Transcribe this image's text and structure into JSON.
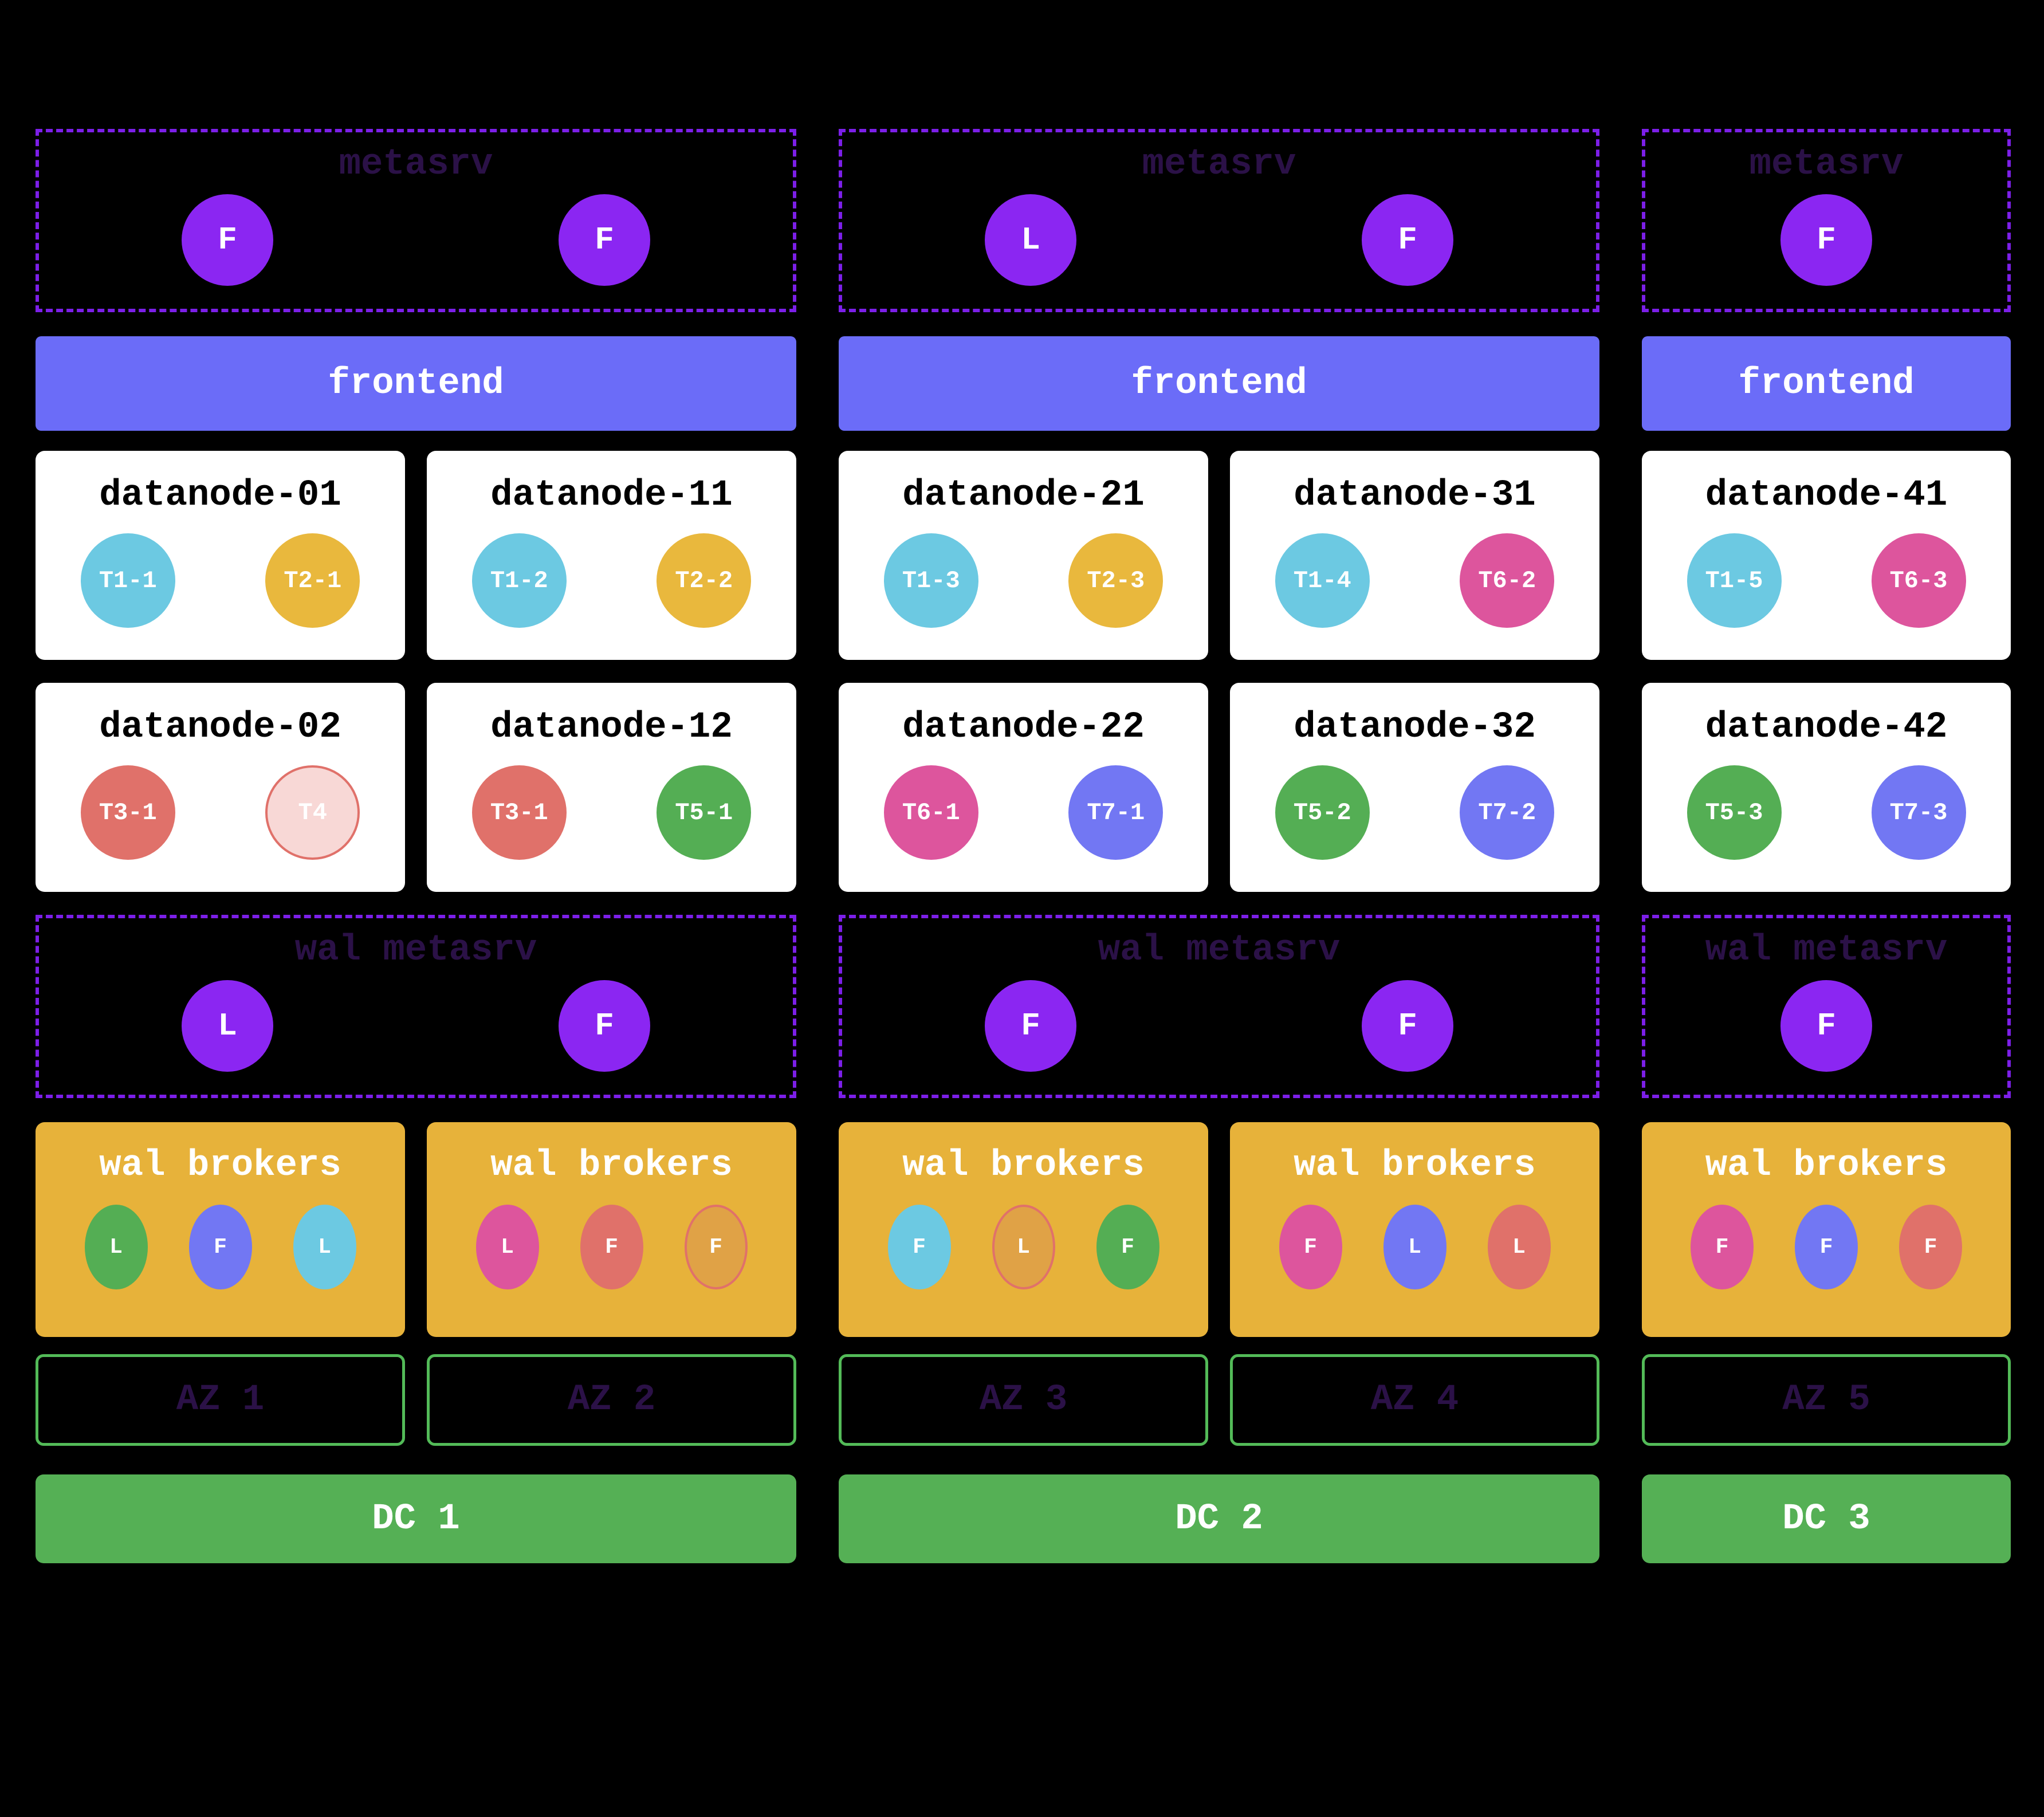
{
  "palette": {
    "background": "#000000",
    "metasrv_node_purple": "#8b26f2",
    "dashed_border_purple": "#7c1fe8",
    "dark_purple_label": "#2b1147",
    "frontend_bar": "#6b6cf8",
    "datanode_box": "#ffffff",
    "broker_box_yellow": "#e7b23a",
    "az_border_green": "#53bb58",
    "dc_fill_green": "#55b055",
    "region_cyan": "#6cc9e2",
    "region_yellow": "#e9b83d",
    "region_salmon": "#e0716a",
    "region_salmon_muted_fill": "#f8d8d6",
    "region_green": "#54ae54",
    "region_pink": "#dd559d",
    "region_blue": "#7277f3",
    "broker_orange": "#e0a246",
    "outline_salmon": "#e0716a"
  },
  "datacenters": [
    {
      "dc": {
        "label": "DC 1"
      },
      "metasrv": {
        "title": "metasrv",
        "nodes": [
          {
            "role": "F"
          },
          {
            "role": "F"
          }
        ]
      },
      "frontend": {
        "label": "frontend"
      },
      "datanode_rows": [
        [
          {
            "name": "datanode-01",
            "regions": [
              {
                "label": "T1-1",
                "color": "cyan"
              },
              {
                "label": "T2-1",
                "color": "yellow"
              }
            ]
          },
          {
            "name": "datanode-11",
            "regions": [
              {
                "label": "T1-2",
                "color": "cyan"
              },
              {
                "label": "T2-2",
                "color": "yellow"
              }
            ]
          }
        ],
        [
          {
            "name": "datanode-02",
            "regions": [
              {
                "label": "T3-1",
                "color": "salmon"
              },
              {
                "label": "T4",
                "color": "salmon-muted"
              }
            ]
          },
          {
            "name": "datanode-12",
            "regions": [
              {
                "label": "T3-1",
                "color": "salmon"
              },
              {
                "label": "T5-1",
                "color": "green"
              }
            ]
          }
        ]
      ],
      "wal_metasrv": {
        "title": "wal metasrv",
        "nodes": [
          {
            "role": "L"
          },
          {
            "role": "F"
          }
        ]
      },
      "wal_broker_groups": [
        {
          "title": "wal brokers",
          "brokers": [
            {
              "role": "L",
              "color": "green"
            },
            {
              "role": "F",
              "color": "blue"
            },
            {
              "role": "L",
              "color": "cyan"
            }
          ]
        },
        {
          "title": "wal brokers",
          "brokers": [
            {
              "role": "L",
              "color": "pink"
            },
            {
              "role": "F",
              "color": "salmon"
            },
            {
              "role": "F",
              "color": "orange-outline"
            }
          ]
        }
      ],
      "azs": [
        {
          "label": "AZ 1"
        },
        {
          "label": "AZ 2"
        }
      ]
    },
    {
      "dc": {
        "label": "DC 2"
      },
      "metasrv": {
        "title": "metasrv",
        "nodes": [
          {
            "role": "L"
          },
          {
            "role": "F"
          }
        ]
      },
      "frontend": {
        "label": "frontend"
      },
      "datanode_rows": [
        [
          {
            "name": "datanode-21",
            "regions": [
              {
                "label": "T1-3",
                "color": "cyan"
              },
              {
                "label": "T2-3",
                "color": "yellow"
              }
            ]
          },
          {
            "name": "datanode-31",
            "regions": [
              {
                "label": "T1-4",
                "color": "cyan"
              },
              {
                "label": "T6-2",
                "color": "pink"
              }
            ]
          }
        ],
        [
          {
            "name": "datanode-22",
            "regions": [
              {
                "label": "T6-1",
                "color": "pink"
              },
              {
                "label": "T7-1",
                "color": "blue"
              }
            ]
          },
          {
            "name": "datanode-32",
            "regions": [
              {
                "label": "T5-2",
                "color": "green"
              },
              {
                "label": "T7-2",
                "color": "blue"
              }
            ]
          }
        ]
      ],
      "wal_metasrv": {
        "title": "wal metasrv",
        "nodes": [
          {
            "role": "F"
          },
          {
            "role": "F"
          }
        ]
      },
      "wal_broker_groups": [
        {
          "title": "wal brokers",
          "brokers": [
            {
              "role": "F",
              "color": "cyan"
            },
            {
              "role": "L",
              "color": "orange-outline"
            },
            {
              "role": "F",
              "color": "green"
            }
          ]
        },
        {
          "title": "wal brokers",
          "brokers": [
            {
              "role": "F",
              "color": "pink"
            },
            {
              "role": "L",
              "color": "blue"
            },
            {
              "role": "L",
              "color": "salmon"
            }
          ]
        }
      ],
      "azs": [
        {
          "label": "AZ 3"
        },
        {
          "label": "AZ 4"
        }
      ]
    },
    {
      "dc": {
        "label": "DC 3"
      },
      "metasrv": {
        "title": "metasrv",
        "nodes": [
          {
            "role": "F"
          }
        ]
      },
      "frontend": {
        "label": "frontend"
      },
      "datanode_rows": [
        [
          {
            "name": "datanode-41",
            "regions": [
              {
                "label": "T1-5",
                "color": "cyan"
              },
              {
                "label": "T6-3",
                "color": "pink"
              }
            ]
          }
        ],
        [
          {
            "name": "datanode-42",
            "regions": [
              {
                "label": "T5-3",
                "color": "green"
              },
              {
                "label": "T7-3",
                "color": "blue"
              }
            ]
          }
        ]
      ],
      "wal_metasrv": {
        "title": "wal metasrv",
        "nodes": [
          {
            "role": "F"
          }
        ]
      },
      "wal_broker_groups": [
        {
          "title": "wal brokers",
          "brokers": [
            {
              "role": "F",
              "color": "pink"
            },
            {
              "role": "F",
              "color": "blue"
            },
            {
              "role": "F",
              "color": "salmon"
            }
          ]
        }
      ],
      "azs": [
        {
          "label": "AZ 5"
        }
      ]
    }
  ]
}
